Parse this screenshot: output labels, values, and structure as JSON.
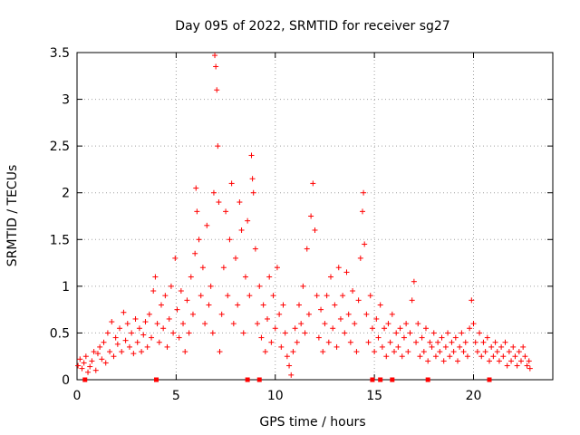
{
  "chart_data": {
    "type": "scatter",
    "title": "Day 095 of 2022, SRMTID for receiver sg27",
    "xlabel": "GPS time / hours",
    "ylabel": "SRMTID / TECUs",
    "xlim": [
      0,
      24
    ],
    "ylim": [
      0,
      3.5
    ],
    "xticks": [
      0,
      5,
      10,
      15,
      20
    ],
    "xtick_labels": [
      "0",
      "5",
      "10",
      "15",
      "20"
    ],
    "yticks": [
      0,
      0.5,
      1,
      1.5,
      2,
      2.5,
      3,
      3.5
    ],
    "ytick_labels": [
      "0",
      "0.5",
      "1",
      "1.5",
      "2",
      "2.5",
      "3",
      "3.5"
    ],
    "grid": true,
    "marker": "+",
    "series": [
      {
        "name": "sg27",
        "color": "#ff0000",
        "points": [
          [
            0.05,
            0.15
          ],
          [
            0.15,
            0.22
          ],
          [
            0.25,
            0.12
          ],
          [
            0.35,
            0.18
          ],
          [
            0.45,
            0.25
          ],
          [
            0.55,
            0.08
          ],
          [
            0.65,
            0.14
          ],
          [
            0.75,
            0.2
          ],
          [
            0.85,
            0.3
          ],
          [
            0.95,
            0.1
          ],
          [
            1.05,
            0.28
          ],
          [
            1.15,
            0.35
          ],
          [
            1.25,
            0.22
          ],
          [
            1.35,
            0.4
          ],
          [
            1.45,
            0.18
          ],
          [
            1.55,
            0.5
          ],
          [
            1.65,
            0.3
          ],
          [
            1.75,
            0.62
          ],
          [
            1.85,
            0.25
          ],
          [
            1.95,
            0.45
          ],
          [
            2.05,
            0.38
          ],
          [
            2.15,
            0.55
          ],
          [
            2.25,
            0.3
          ],
          [
            2.35,
            0.72
          ],
          [
            2.45,
            0.42
          ],
          [
            2.55,
            0.6
          ],
          [
            2.65,
            0.35
          ],
          [
            2.75,
            0.5
          ],
          [
            2.85,
            0.28
          ],
          [
            2.95,
            0.65
          ],
          [
            3.05,
            0.4
          ],
          [
            3.15,
            0.55
          ],
          [
            3.25,
            0.3
          ],
          [
            3.35,
            0.48
          ],
          [
            3.45,
            0.62
          ],
          [
            3.55,
            0.35
          ],
          [
            3.65,
            0.7
          ],
          [
            3.75,
            0.45
          ],
          [
            3.85,
            0.95
          ],
          [
            3.95,
            1.1
          ],
          [
            4.05,
            0.6
          ],
          [
            4.15,
            0.4
          ],
          [
            4.25,
            0.8
          ],
          [
            4.35,
            0.55
          ],
          [
            4.45,
            0.9
          ],
          [
            4.55,
            0.35
          ],
          [
            4.65,
            0.65
          ],
          [
            4.75,
            1.0
          ],
          [
            4.85,
            0.5
          ],
          [
            4.95,
            1.3
          ],
          [
            5.05,
            0.75
          ],
          [
            5.15,
            0.45
          ],
          [
            5.25,
            0.95
          ],
          [
            5.35,
            0.6
          ],
          [
            5.45,
            0.3
          ],
          [
            5.55,
            0.85
          ],
          [
            5.65,
            0.5
          ],
          [
            5.75,
            1.1
          ],
          [
            5.85,
            0.7
          ],
          [
            5.95,
            1.35
          ],
          [
            6.0,
            2.05
          ],
          [
            6.05,
            1.8
          ],
          [
            6.15,
            1.5
          ],
          [
            6.25,
            0.9
          ],
          [
            6.35,
            1.2
          ],
          [
            6.45,
            0.6
          ],
          [
            6.55,
            1.65
          ],
          [
            6.65,
            0.8
          ],
          [
            6.75,
            1.0
          ],
          [
            6.85,
            0.5
          ],
          [
            6.9,
            2.0
          ],
          [
            6.95,
            3.47
          ],
          [
            7.0,
            3.35
          ],
          [
            7.05,
            3.1
          ],
          [
            7.1,
            2.5
          ],
          [
            7.15,
            1.9
          ],
          [
            7.2,
            0.3
          ],
          [
            7.3,
            0.7
          ],
          [
            7.4,
            1.2
          ],
          [
            7.5,
            1.8
          ],
          [
            7.6,
            0.9
          ],
          [
            7.7,
            1.5
          ],
          [
            7.8,
            2.1
          ],
          [
            7.9,
            0.6
          ],
          [
            8.0,
            1.3
          ],
          [
            8.1,
            0.8
          ],
          [
            8.2,
            1.9
          ],
          [
            8.3,
            1.6
          ],
          [
            8.4,
            0.5
          ],
          [
            8.5,
            1.1
          ],
          [
            8.6,
            1.7
          ],
          [
            8.7,
            0.9
          ],
          [
            8.8,
            2.4
          ],
          [
            8.85,
            2.15
          ],
          [
            8.9,
            2.0
          ],
          [
            9.0,
            1.4
          ],
          [
            9.1,
            0.6
          ],
          [
            9.2,
            1.0
          ],
          [
            9.3,
            0.45
          ],
          [
            9.4,
            0.8
          ],
          [
            9.5,
            0.3
          ],
          [
            9.6,
            0.65
          ],
          [
            9.7,
            1.1
          ],
          [
            9.8,
            0.4
          ],
          [
            9.9,
            0.9
          ],
          [
            10.0,
            0.55
          ],
          [
            10.1,
            1.2
          ],
          [
            10.2,
            0.7
          ],
          [
            10.3,
            0.35
          ],
          [
            10.4,
            0.8
          ],
          [
            10.5,
            0.5
          ],
          [
            10.6,
            0.25
          ],
          [
            10.7,
            0.15
          ],
          [
            10.8,
            0.05
          ],
          [
            10.9,
            0.3
          ],
          [
            11.0,
            0.55
          ],
          [
            11.1,
            0.4
          ],
          [
            11.2,
            0.8
          ],
          [
            11.3,
            0.6
          ],
          [
            11.4,
            1.0
          ],
          [
            11.5,
            0.5
          ],
          [
            11.6,
            1.4
          ],
          [
            11.7,
            0.7
          ],
          [
            11.8,
            1.75
          ],
          [
            11.9,
            2.1
          ],
          [
            12.0,
            1.6
          ],
          [
            12.1,
            0.9
          ],
          [
            12.2,
            0.45
          ],
          [
            12.3,
            0.75
          ],
          [
            12.4,
            0.3
          ],
          [
            12.5,
            0.6
          ],
          [
            12.6,
            0.9
          ],
          [
            12.7,
            0.4
          ],
          [
            12.8,
            1.1
          ],
          [
            12.9,
            0.55
          ],
          [
            13.0,
            0.8
          ],
          [
            13.1,
            0.35
          ],
          [
            13.2,
            1.2
          ],
          [
            13.3,
            0.65
          ],
          [
            13.4,
            0.9
          ],
          [
            13.5,
            0.5
          ],
          [
            13.6,
            1.15
          ],
          [
            13.7,
            0.7
          ],
          [
            13.8,
            0.4
          ],
          [
            13.9,
            0.95
          ],
          [
            14.0,
            0.6
          ],
          [
            14.1,
            0.3
          ],
          [
            14.2,
            0.85
          ],
          [
            14.3,
            1.3
          ],
          [
            14.4,
            1.8
          ],
          [
            14.45,
            2.0
          ],
          [
            14.5,
            1.45
          ],
          [
            14.6,
            0.7
          ],
          [
            14.7,
            0.4
          ],
          [
            14.8,
            0.9
          ],
          [
            14.9,
            0.55
          ],
          [
            15.0,
            0.3
          ],
          [
            15.1,
            0.65
          ],
          [
            15.2,
            0.45
          ],
          [
            15.3,
            0.8
          ],
          [
            15.4,
            0.35
          ],
          [
            15.5,
            0.55
          ],
          [
            15.6,
            0.25
          ],
          [
            15.7,
            0.6
          ],
          [
            15.8,
            0.4
          ],
          [
            15.9,
            0.7
          ],
          [
            16.0,
            0.3
          ],
          [
            16.1,
            0.5
          ],
          [
            16.2,
            0.35
          ],
          [
            16.3,
            0.55
          ],
          [
            16.4,
            0.25
          ],
          [
            16.5,
            0.45
          ],
          [
            16.6,
            0.6
          ],
          [
            16.7,
            0.3
          ],
          [
            16.8,
            0.5
          ],
          [
            16.9,
            0.85
          ],
          [
            17.0,
            1.05
          ],
          [
            17.1,
            0.4
          ],
          [
            17.2,
            0.6
          ],
          [
            17.3,
            0.25
          ],
          [
            17.4,
            0.45
          ],
          [
            17.5,
            0.3
          ],
          [
            17.6,
            0.55
          ],
          [
            17.7,
            0.2
          ],
          [
            17.8,
            0.4
          ],
          [
            17.9,
            0.35
          ],
          [
            18.0,
            0.5
          ],
          [
            18.1,
            0.25
          ],
          [
            18.2,
            0.4
          ],
          [
            18.3,
            0.3
          ],
          [
            18.4,
            0.45
          ],
          [
            18.5,
            0.2
          ],
          [
            18.6,
            0.35
          ],
          [
            18.7,
            0.5
          ],
          [
            18.8,
            0.25
          ],
          [
            18.9,
            0.4
          ],
          [
            19.0,
            0.3
          ],
          [
            19.1,
            0.45
          ],
          [
            19.2,
            0.2
          ],
          [
            19.3,
            0.35
          ],
          [
            19.4,
            0.5
          ],
          [
            19.5,
            0.3
          ],
          [
            19.6,
            0.4
          ],
          [
            19.7,
            0.25
          ],
          [
            19.8,
            0.55
          ],
          [
            19.9,
            0.85
          ],
          [
            20.0,
            0.6
          ],
          [
            20.1,
            0.4
          ],
          [
            20.2,
            0.3
          ],
          [
            20.3,
            0.5
          ],
          [
            20.4,
            0.25
          ],
          [
            20.5,
            0.4
          ],
          [
            20.6,
            0.3
          ],
          [
            20.7,
            0.45
          ],
          [
            20.8,
            0.2
          ],
          [
            20.9,
            0.35
          ],
          [
            21.0,
            0.25
          ],
          [
            21.1,
            0.4
          ],
          [
            21.2,
            0.3
          ],
          [
            21.3,
            0.2
          ],
          [
            21.4,
            0.35
          ],
          [
            21.5,
            0.25
          ],
          [
            21.6,
            0.4
          ],
          [
            21.7,
            0.15
          ],
          [
            21.8,
            0.3
          ],
          [
            21.9,
            0.2
          ],
          [
            22.0,
            0.35
          ],
          [
            22.1,
            0.25
          ],
          [
            22.2,
            0.15
          ],
          [
            22.3,
            0.3
          ],
          [
            22.4,
            0.2
          ],
          [
            22.5,
            0.35
          ],
          [
            22.6,
            0.25
          ],
          [
            22.7,
            0.15
          ],
          [
            22.8,
            0.2
          ],
          [
            22.85,
            0.12
          ]
        ]
      }
    ],
    "zero_markers": [
      0.4,
      4.0,
      8.6,
      9.2,
      14.9,
      15.3,
      15.9,
      17.7,
      20.8
    ]
  }
}
